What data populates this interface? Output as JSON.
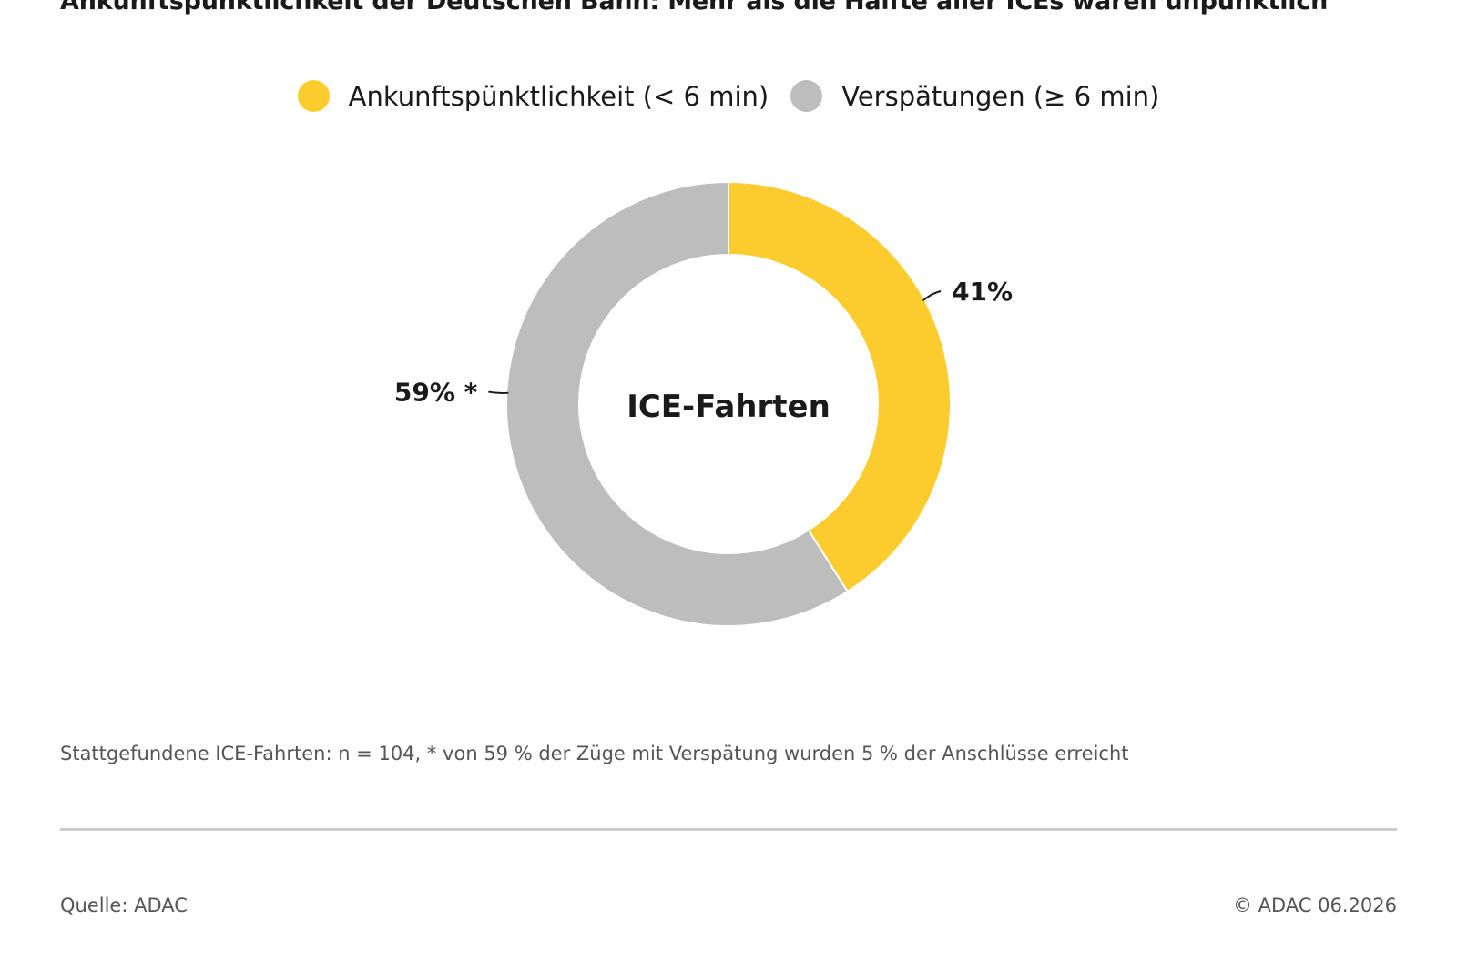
{
  "title": "Ankunftspünktlichkeit der Deutschen Bahn: Mehr als die Hälfte aller ICEs waren unpünktlich",
  "footnote": "Stattgefundene ICE-Fahrten: n = 104, * von 59 % der Züge mit Verspätung wurden 5 % der Anschlüsse erreicht",
  "source": "Quelle: ADAC",
  "copyright": "© ADAC 06.2026",
  "chart_data": {
    "type": "pie",
    "variant": "donut",
    "center_label": "ICE-Fahrten",
    "legend_position": "top",
    "categories": [
      "Ankunftspünktlichkeit (< 6 min)",
      "Verspätungen (≥ 6 min)"
    ],
    "values": [
      41,
      59
    ],
    "unit": "%",
    "data_labels": [
      "41%",
      "59% *"
    ],
    "colors": [
      "#FCCC2F",
      "#BDBDBD"
    ]
  }
}
